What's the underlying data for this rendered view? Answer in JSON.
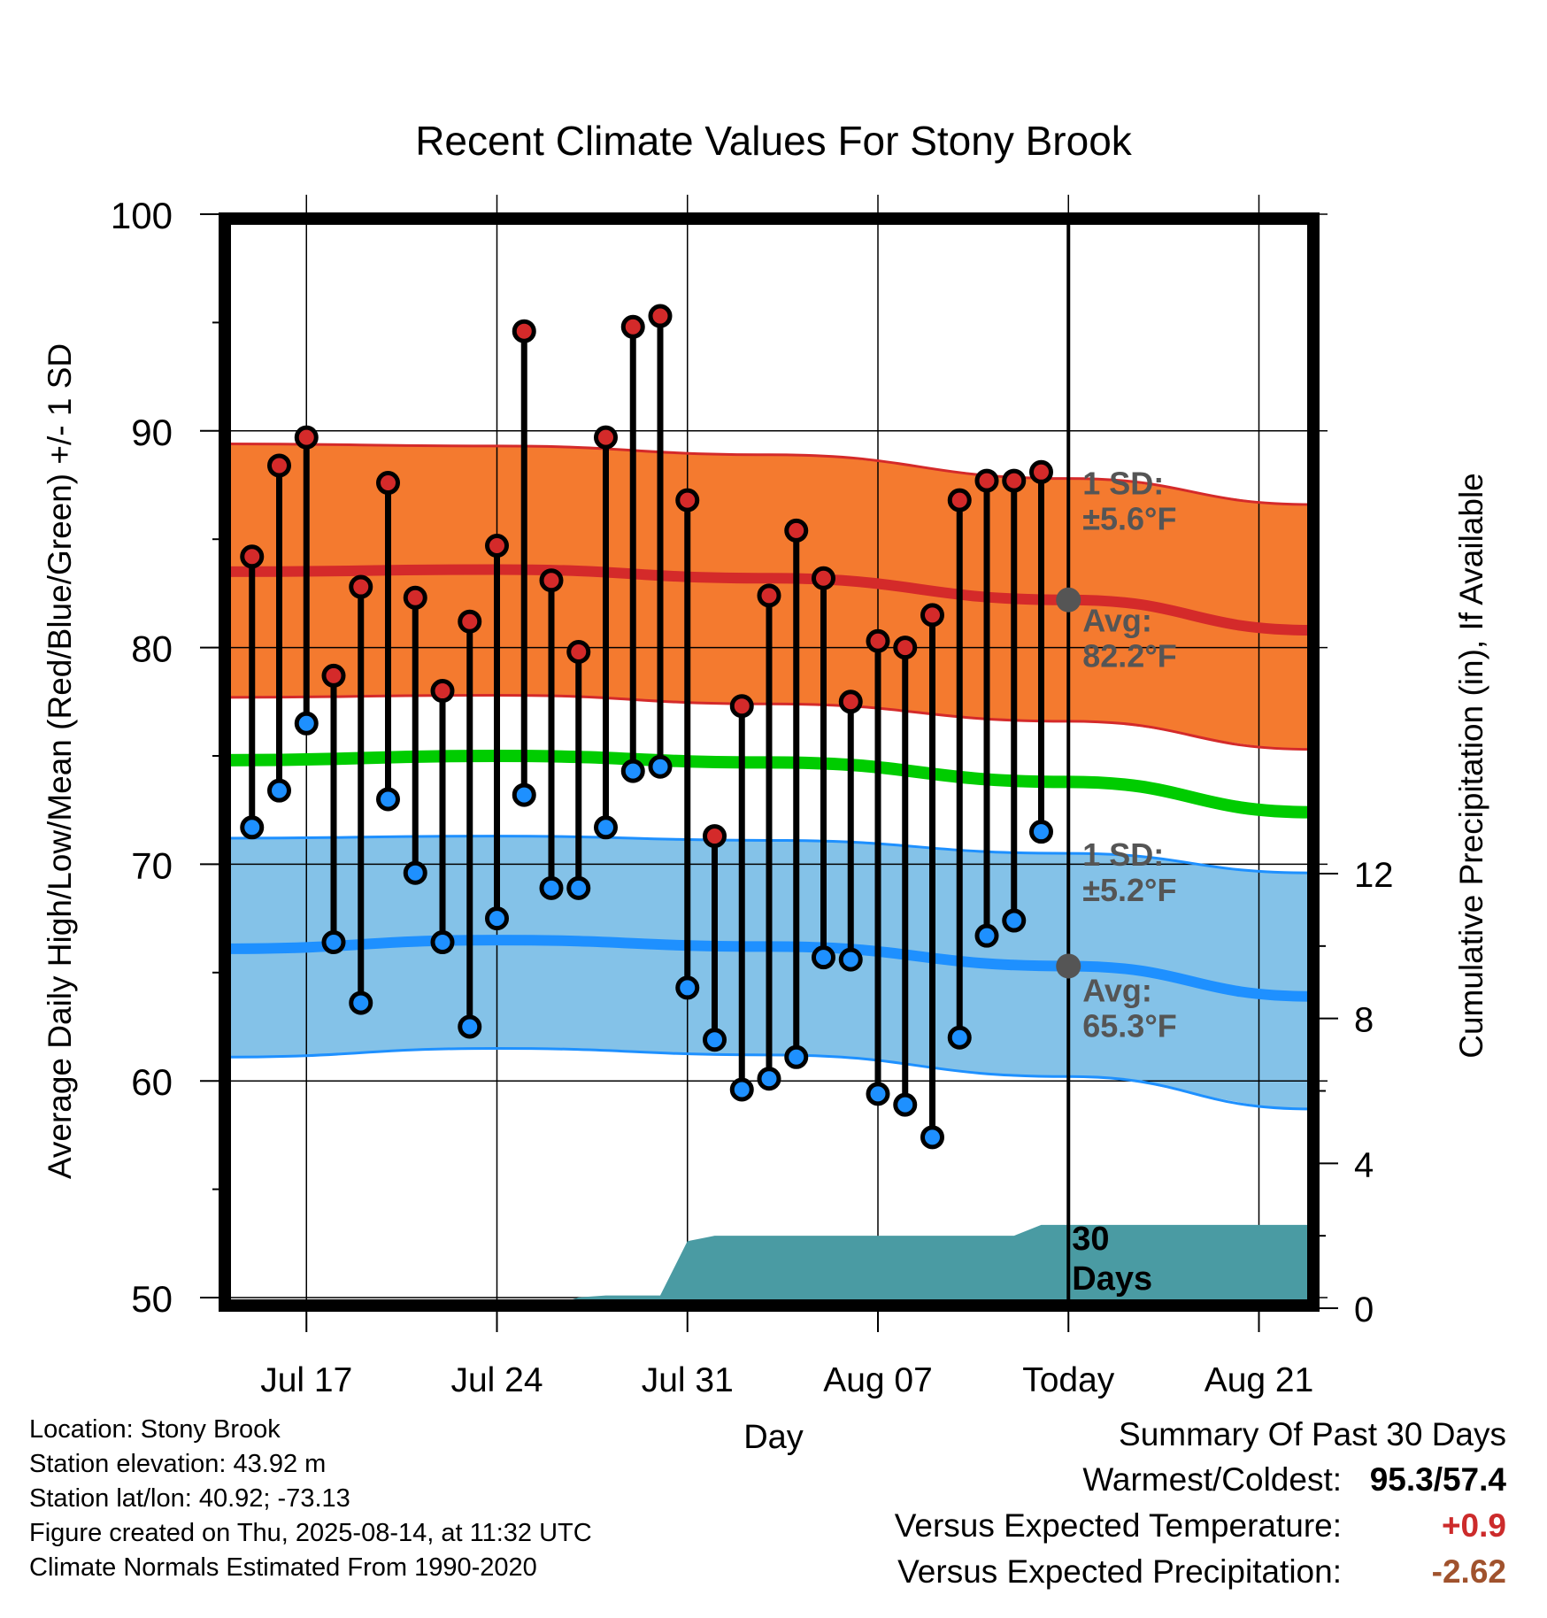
{
  "chart_data": {
    "type": "line",
    "title": "Recent Climate Values For Stony Brook",
    "xlabel": "Day",
    "ylabel": "Average Daily High/Low/Mean (Red/Blue/Green) +/- 1 SD",
    "y2label": "Cumulative Precipitation (in), If Available",
    "ylim": [
      50,
      100
    ],
    "y_ticks": [
      "100",
      "90",
      "80",
      "70",
      "60",
      "50"
    ],
    "y2lim": [
      0,
      24
    ],
    "y2_ticks": [
      "12",
      "8",
      "4",
      "0"
    ],
    "x_tick_labels": [
      "Jul 17",
      "Jul 24",
      "Jul 31",
      "Aug 07",
      "Today",
      "Aug 21"
    ],
    "x_tick_dates": [
      "2025-07-17",
      "2025-07-24",
      "2025-07-31",
      "2025-08-07",
      "2025-08-14",
      "2025-08-21"
    ],
    "xlim": [
      "2025-07-14",
      "2025-08-23"
    ],
    "today_date": "2025-08-14",
    "grid": true,
    "colors": {
      "high_marker": "#d42a2a",
      "low_marker": "#1e90ff",
      "high_band": "#f47a2f",
      "high_line": "#d42a2a",
      "low_band": "#84c2e8",
      "low_line": "#1e90ff",
      "mean_line": "#00cc00",
      "precip_area": "#4a9ba3"
    },
    "daily": {
      "dates": [
        "2025-07-15",
        "2025-07-16",
        "2025-07-17",
        "2025-07-18",
        "2025-07-19",
        "2025-07-20",
        "2025-07-21",
        "2025-07-22",
        "2025-07-23",
        "2025-07-24",
        "2025-07-25",
        "2025-07-26",
        "2025-07-27",
        "2025-07-28",
        "2025-07-29",
        "2025-07-30",
        "2025-07-31",
        "2025-08-01",
        "2025-08-02",
        "2025-08-03",
        "2025-08-04",
        "2025-08-05",
        "2025-08-06",
        "2025-08-07",
        "2025-08-08",
        "2025-08-09",
        "2025-08-10",
        "2025-08-11",
        "2025-08-12",
        "2025-08-13"
      ],
      "high": [
        84.2,
        88.4,
        89.7,
        78.7,
        82.8,
        87.6,
        82.3,
        78.0,
        81.2,
        84.7,
        94.6,
        83.1,
        79.8,
        89.7,
        94.8,
        95.3,
        86.8,
        71.3,
        77.3,
        82.4,
        85.4,
        83.2,
        77.5,
        80.3,
        80.0,
        81.5,
        86.8,
        87.7,
        87.7,
        88.1
      ],
      "low": [
        71.7,
        73.4,
        76.5,
        66.4,
        63.6,
        73.0,
        69.6,
        66.4,
        62.5,
        67.5,
        73.2,
        68.9,
        68.9,
        71.7,
        74.3,
        74.5,
        64.3,
        61.9,
        59.6,
        60.1,
        61.1,
        65.7,
        65.6,
        59.4,
        58.9,
        57.4,
        62.0,
        66.7,
        67.4,
        71.5
      ]
    },
    "normals": {
      "dates": [
        "2025-07-14",
        "2025-07-24",
        "2025-08-03",
        "2025-08-14",
        "2025-08-23"
      ],
      "high_avg": [
        83.5,
        83.6,
        83.2,
        82.2,
        80.8
      ],
      "high_upper": [
        89.4,
        89.3,
        88.9,
        87.8,
        86.6
      ],
      "high_lower": [
        77.7,
        77.8,
        77.4,
        76.6,
        75.3
      ],
      "mean": [
        74.8,
        75.0,
        74.7,
        73.8,
        72.4
      ],
      "low_avg": [
        66.1,
        66.5,
        66.2,
        65.3,
        63.9
      ],
      "low_upper": [
        71.2,
        71.3,
        71.1,
        70.5,
        69.6
      ],
      "low_lower": [
        61.1,
        61.5,
        61.2,
        60.2,
        58.7
      ]
    },
    "precip_cumulative": {
      "dates": [
        "2025-07-14",
        "2025-07-26",
        "2025-07-27",
        "2025-07-28",
        "2025-07-30",
        "2025-07-31",
        "2025-08-01",
        "2025-08-12",
        "2025-08-13",
        "2025-08-23"
      ],
      "values": [
        0.0,
        0.05,
        0.3,
        0.35,
        0.35,
        1.85,
        2.0,
        2.0,
        2.3,
        2.3
      ]
    },
    "annotations": {
      "high_sd_label": "1 SD:",
      "high_sd_value": "±5.6°F",
      "high_avg_label": "Avg:",
      "high_avg_value": "82.2°F",
      "low_sd_label": "1 SD:",
      "low_sd_value": "±5.2°F",
      "low_avg_label": "Avg:",
      "low_avg_value": "65.3°F",
      "precip_label_1": "30",
      "precip_label_2": "Days"
    }
  },
  "info": {
    "location": "Location: Stony Brook",
    "elevation": "Station elevation: 43.92 m",
    "latlon": "Station lat/lon: 40.92; -73.13",
    "created": "Figure created on Thu, 2025-08-14, at 11:32 UTC",
    "normals": "Climate Normals Estimated From 1990-2020"
  },
  "summary": {
    "title": "Summary Of Past 30 Days",
    "warm_cold_label": "Warmest/Coldest:",
    "warm_cold_value": "95.3/57.4",
    "temp_label": "Versus Expected Temperature:",
    "temp_value": "+0.9",
    "precip_label": "Versus Expected Precipitation:",
    "precip_value": "-2.62"
  }
}
